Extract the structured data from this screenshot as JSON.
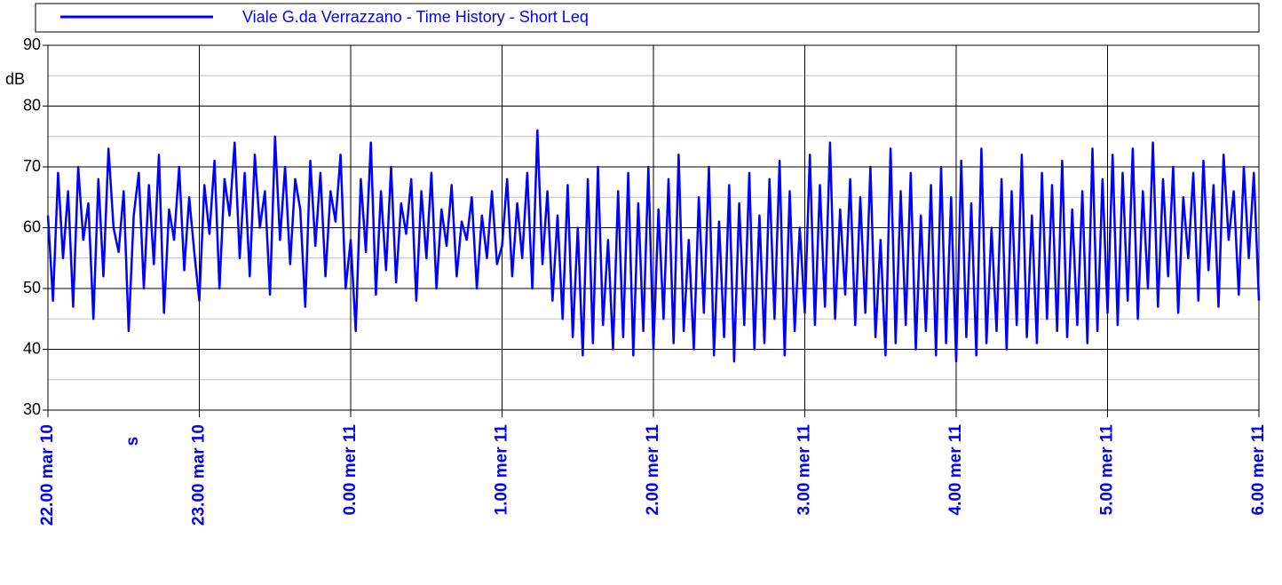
{
  "chart_data": {
    "type": "line",
    "series": [
      {
        "name": "Viale G.da Verrazzano - Time History - Short Leq",
        "color": "#0000ff",
        "values": [
          62,
          48,
          69,
          55,
          66,
          47,
          70,
          58,
          64,
          45,
          68,
          52,
          73,
          60,
          56,
          66,
          43,
          62,
          69,
          50,
          67,
          54,
          72,
          46,
          63,
          58,
          70,
          53,
          65,
          56,
          48,
          67,
          59,
          71,
          50,
          68,
          62,
          74,
          55,
          69,
          52,
          72,
          60,
          66,
          49,
          75,
          58,
          70,
          54,
          68,
          63,
          47,
          71,
          57,
          69,
          52,
          66,
          61,
          72,
          50,
          58,
          43,
          68,
          56,
          74,
          49,
          66,
          53,
          70,
          51,
          64,
          59,
          68,
          48,
          66,
          55,
          69,
          50,
          63,
          57,
          67,
          52,
          61,
          58,
          65,
          50,
          62,
          55,
          66,
          54,
          57,
          68,
          52,
          64,
          55,
          69,
          50,
          76,
          54,
          66,
          48,
          62,
          45,
          67,
          42,
          60,
          39,
          68,
          41,
          70,
          44,
          58,
          40,
          66,
          42,
          69,
          39,
          64,
          43,
          70,
          40,
          63,
          45,
          68,
          41,
          72,
          43,
          58,
          40,
          65,
          46,
          70,
          39,
          61,
          42,
          67,
          38,
          64,
          44,
          69,
          40,
          62,
          41,
          68,
          45,
          71,
          39,
          66,
          43,
          60,
          46,
          72,
          44,
          67,
          47,
          74,
          45,
          63,
          49,
          68,
          44,
          65,
          46,
          70,
          42,
          58,
          39,
          73,
          41,
          66,
          44,
          69,
          40,
          62,
          43,
          67,
          39,
          70,
          41,
          65,
          38,
          71,
          42,
          64,
          39,
          73,
          41,
          60,
          43,
          68,
          40,
          66,
          44,
          72,
          42,
          62,
          41,
          69,
          45,
          67,
          43,
          71,
          42,
          63,
          44,
          66,
          41,
          73,
          43,
          68,
          46,
          72,
          44,
          69,
          48,
          73,
          45,
          66,
          50,
          74,
          47,
          68,
          52,
          70,
          46,
          65,
          55,
          69,
          48,
          71,
          53,
          67,
          47,
          72,
          58,
          66,
          49,
          70,
          55,
          69,
          48
        ]
      }
    ],
    "y_label": "dB",
    "x_label": "s",
    "ylim": [
      30,
      90
    ],
    "yticks": [
      30,
      40,
      50,
      60,
      70,
      80,
      90
    ],
    "minor_yticks": [
      35,
      45,
      55,
      65,
      75,
      85
    ],
    "xlim": [
      0,
      240
    ],
    "xticks": [
      {
        "value": 0,
        "label": "22.00 mar 10"
      },
      {
        "value": 30,
        "label": "23.00 mar 10"
      },
      {
        "value": 60,
        "label": "0.00 mer 11"
      },
      {
        "value": 90,
        "label": "1.00 mer 11"
      },
      {
        "value": 120,
        "label": "2.00 mer 11"
      },
      {
        "value": 150,
        "label": "3.00 mer 11"
      },
      {
        "value": 180,
        "label": "4.00 mer 11"
      },
      {
        "value": 210,
        "label": "5.00 mer 11"
      },
      {
        "value": 240,
        "label": "6.00 mer 11"
      }
    ],
    "grid": true
  }
}
